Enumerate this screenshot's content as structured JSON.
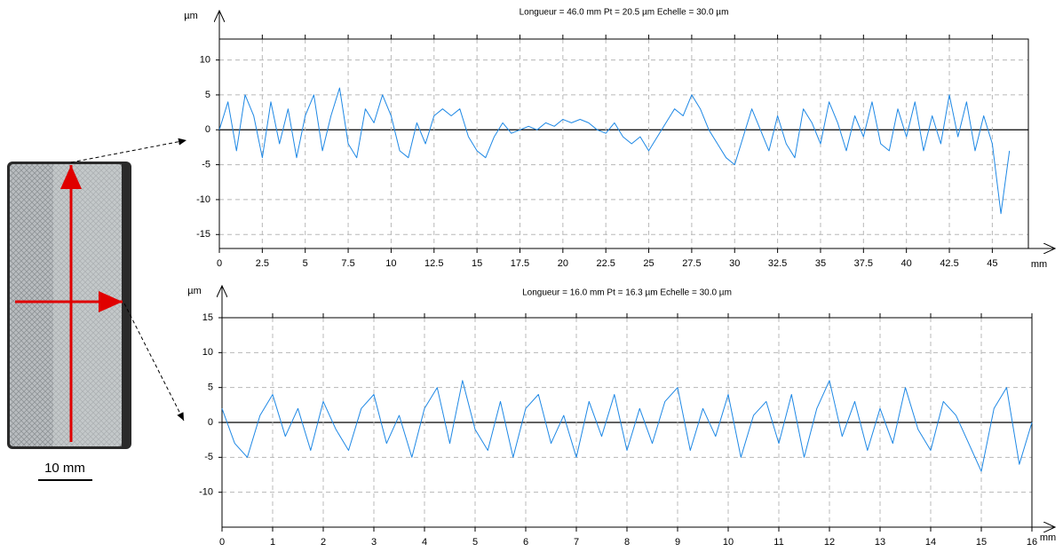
{
  "image": {
    "scale_label": "10 mm"
  },
  "chart_data": [
    {
      "type": "line",
      "title": "Longueur = 46.0 mm  Pt = 20.5 µm  Echelle = 30.0 µm",
      "y_label": "µm",
      "x_label": "mm",
      "color": "#1e88e5",
      "x": [
        0,
        0.5,
        1,
        1.5,
        2,
        2.5,
        3,
        3.5,
        4,
        4.5,
        5,
        5.5,
        6,
        6.5,
        7,
        7.5,
        8,
        8.5,
        9,
        9.5,
        10,
        10.5,
        11,
        11.5,
        12,
        12.5,
        13,
        13.5,
        14,
        14.5,
        15,
        15.5,
        16,
        16.5,
        17,
        17.5,
        18,
        18.5,
        19,
        19.5,
        20,
        20.5,
        21,
        21.5,
        22,
        22.5,
        23,
        23.5,
        24,
        24.5,
        25,
        25.5,
        26,
        26.5,
        27,
        27.5,
        28,
        28.5,
        29,
        29.5,
        30,
        30.5,
        31,
        31.5,
        32,
        32.5,
        33,
        33.5,
        34,
        34.5,
        35,
        35.5,
        36,
        36.5,
        37,
        37.5,
        38,
        38.5,
        39,
        39.5,
        40,
        40.5,
        41,
        41.5,
        42,
        42.5,
        43,
        43.5,
        44,
        44.5,
        45,
        45.5,
        46
      ],
      "values": [
        0,
        4,
        -3,
        5,
        2,
        -4,
        4,
        -2,
        3,
        -4,
        2,
        5,
        -3,
        2,
        6,
        -2,
        -4,
        3,
        1,
        5,
        2,
        -3,
        -4,
        1,
        -2,
        2,
        3,
        2,
        3,
        -1,
        -3,
        -4,
        -1,
        1,
        -0.5,
        0,
        0.5,
        0,
        1,
        0.5,
        1.5,
        1,
        1.5,
        1,
        0,
        -0.5,
        1,
        -1,
        -2,
        -1,
        -3,
        -1,
        1,
        3,
        2,
        5,
        3,
        0,
        -2,
        -4,
        -5,
        -1,
        3,
        0,
        -3,
        2,
        -2,
        -4,
        3,
        1,
        -2,
        4,
        1,
        -3,
        2,
        -1,
        4,
        -2,
        -3,
        3,
        -1,
        4,
        -3,
        2,
        -2,
        5,
        -1,
        4,
        -3,
        2,
        -2,
        -12,
        -3
      ],
      "xlim": [
        0,
        47.1
      ],
      "ylim": [
        -17,
        13
      ],
      "xticks": [
        0,
        2.5,
        5,
        7.5,
        10,
        12.5,
        15,
        17.5,
        20,
        22.5,
        25,
        27.5,
        30,
        32.5,
        35,
        37.5,
        40,
        42.5,
        45
      ],
      "yticks": [
        10,
        5,
        0,
        -5,
        -10,
        -15
      ],
      "grid": true
    },
    {
      "type": "line",
      "title": "Longueur = 16.0 mm  Pt = 16.3 µm  Echelle = 30.0 µm",
      "y_label": "µm",
      "x_label": "mm",
      "color": "#1e88e5",
      "x": [
        0,
        0.25,
        0.5,
        0.75,
        1,
        1.25,
        1.5,
        1.75,
        2,
        2.25,
        2.5,
        2.75,
        3,
        3.25,
        3.5,
        3.75,
        4,
        4.25,
        4.5,
        4.75,
        5,
        5.25,
        5.5,
        5.75,
        6,
        6.25,
        6.5,
        6.75,
        7,
        7.25,
        7.5,
        7.75,
        8,
        8.25,
        8.5,
        8.75,
        9,
        9.25,
        9.5,
        9.75,
        10,
        10.25,
        10.5,
        10.75,
        11,
        11.25,
        11.5,
        11.75,
        12,
        12.25,
        12.5,
        12.75,
        13,
        13.25,
        13.5,
        13.75,
        14,
        14.25,
        14.5,
        14.75,
        15,
        15.25,
        15.5,
        15.75,
        16
      ],
      "values": [
        2,
        -3,
        -5,
        1,
        4,
        -2,
        2,
        -4,
        3,
        -1,
        -4,
        2,
        4,
        -3,
        1,
        -5,
        2,
        5,
        -3,
        6,
        -1,
        -4,
        3,
        -5,
        2,
        4,
        -3,
        1,
        -5,
        3,
        -2,
        4,
        -4,
        2,
        -3,
        3,
        5,
        -4,
        2,
        -2,
        4,
        -5,
        1,
        3,
        -3,
        4,
        -5,
        2,
        6,
        -2,
        3,
        -4,
        2,
        -3,
        5,
        -1,
        -4,
        3,
        1,
        -3,
        -7,
        2,
        5,
        -6,
        0
      ],
      "xlim": [
        0,
        16
      ],
      "ylim": [
        -15,
        15
      ],
      "xticks": [
        0,
        1,
        2,
        3,
        4,
        5,
        6,
        7,
        8,
        9,
        10,
        11,
        12,
        13,
        14,
        15,
        16
      ],
      "yticks": [
        15,
        10,
        5,
        0,
        -5,
        -10
      ],
      "grid": true
    }
  ]
}
